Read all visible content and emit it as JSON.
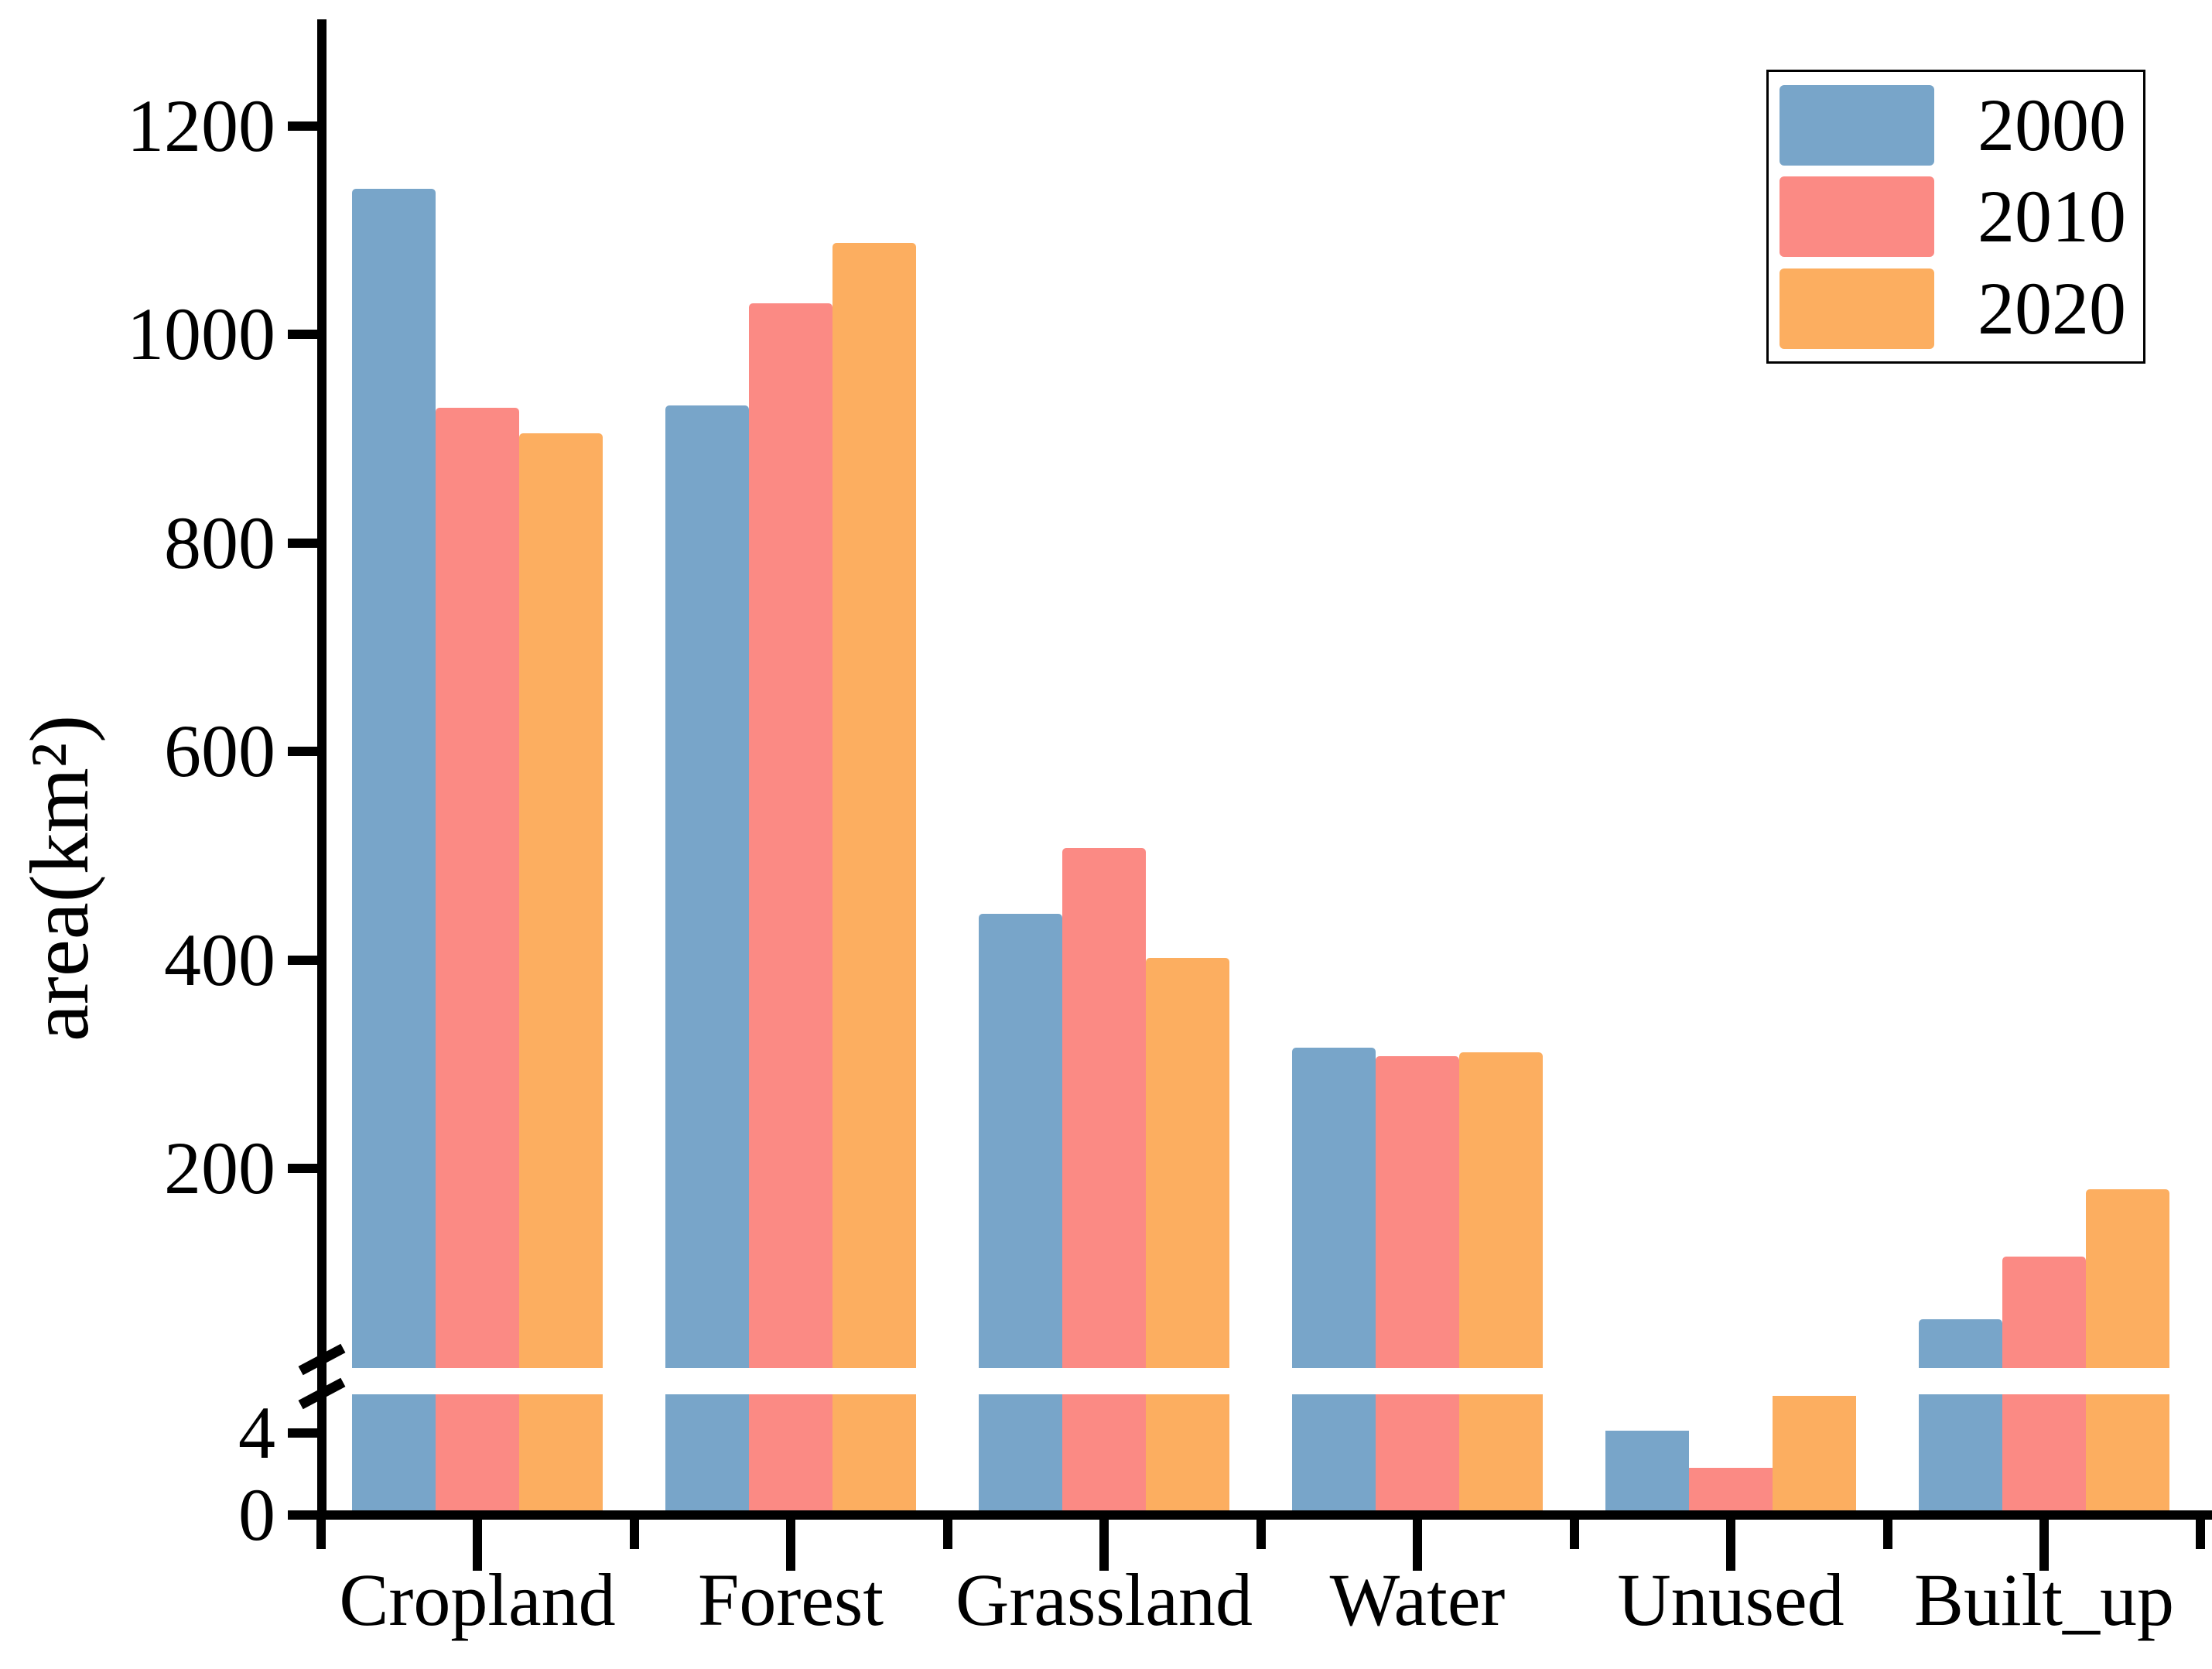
{
  "figure": {
    "background": "#ffffff"
  },
  "chart_data": {
    "type": "bar",
    "title": "",
    "xlabel": "",
    "ylabel": "area(km²)",
    "categories": [
      "Cropland",
      "Forest",
      "Grassland",
      "Water",
      "Unused",
      "Built_up"
    ],
    "series": [
      {
        "name": "2000",
        "color": "#78A5C9",
        "values": [
          1140,
          932,
          444,
          316,
          4.1,
          55
        ]
      },
      {
        "name": "2010",
        "color": "#FB8A84",
        "values": [
          930,
          1030,
          507,
          308,
          2.3,
          115
        ]
      },
      {
        "name": "2020",
        "color": "#FCAE60",
        "values": [
          905,
          1088,
          402,
          311,
          5.8,
          180
        ]
      }
    ],
    "y_axis": {
      "upper_tick_labels": [
        "1200",
        "1000",
        "800",
        "600",
        "400",
        "200"
      ],
      "upper_tick_values": [
        1200,
        1000,
        800,
        600,
        400,
        200
      ],
      "lower_tick_labels": [
        "4",
        "0"
      ],
      "lower_tick_values": [
        4,
        0
      ],
      "axis_break": {
        "lower_segment_max": 5.9,
        "upper_segment_min": 8.5
      },
      "upper_range": [
        8.5,
        1310
      ],
      "lower_range": [
        0,
        5.9
      ],
      "grid": false
    },
    "legend": {
      "position": "top-right"
    },
    "axis_color": "#000000"
  }
}
